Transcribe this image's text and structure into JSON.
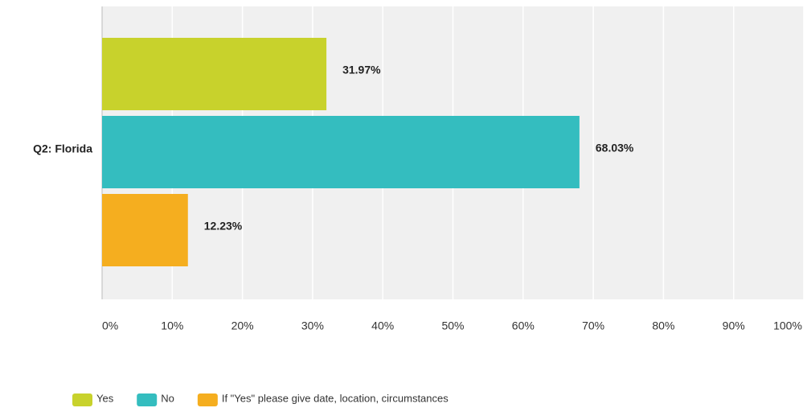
{
  "chart_data": {
    "type": "bar",
    "orientation": "horizontal",
    "categories": [
      "Q2: Florida"
    ],
    "series": [
      {
        "name": "Yes",
        "color": "#c8d22c",
        "values": [
          31.97
        ],
        "value_labels": [
          "31.97%"
        ]
      },
      {
        "name": "No",
        "color": "#34bdbf",
        "values": [
          68.03
        ],
        "value_labels": [
          "68.03%"
        ]
      },
      {
        "name": "If \"Yes\" please give date, location, circumstances",
        "color": "#f5ae1f",
        "values": [
          12.23
        ],
        "value_labels": [
          "12.23%"
        ]
      }
    ],
    "xlim": [
      0,
      100
    ],
    "xticks": [
      {
        "value": 0,
        "label": "0%"
      },
      {
        "value": 10,
        "label": "10%"
      },
      {
        "value": 20,
        "label": "20%"
      },
      {
        "value": 30,
        "label": "30%"
      },
      {
        "value": 40,
        "label": "40%"
      },
      {
        "value": 50,
        "label": "50%"
      },
      {
        "value": 60,
        "label": "60%"
      },
      {
        "value": 70,
        "label": "70%"
      },
      {
        "value": 80,
        "label": "80%"
      },
      {
        "value": 90,
        "label": "90%"
      },
      {
        "value": 100,
        "label": "100%"
      }
    ],
    "grid": true,
    "legend": "bottom"
  }
}
